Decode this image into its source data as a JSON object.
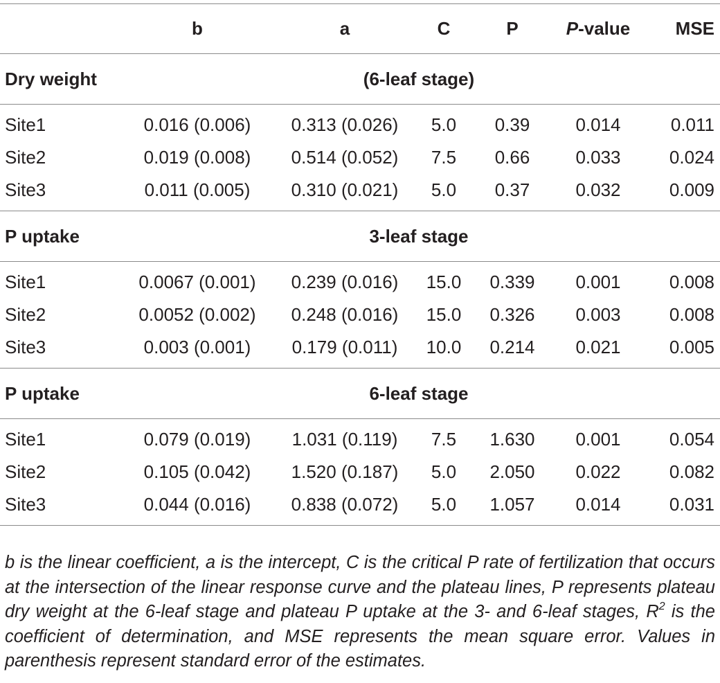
{
  "header": {
    "col0": "",
    "col1": "b",
    "col2": "a",
    "col3": "C",
    "col4": "P",
    "col5_italic": "P",
    "col5_rest": "-value",
    "col6": "MSE"
  },
  "sections": [
    {
      "label": "Dry weight",
      "stage": "(6-leaf stage)",
      "rows": [
        {
          "site": "Site1",
          "b": "0.016 (0.006)",
          "a": "0.313 (0.026)",
          "C": "5.0",
          "P": "0.39",
          "pvalue": "0.014",
          "mse": "0.011"
        },
        {
          "site": "Site2",
          "b": "0.019 (0.008)",
          "a": "0.514 (0.052)",
          "C": "7.5",
          "P": "0.66",
          "pvalue": "0.033",
          "mse": "0.024"
        },
        {
          "site": "Site3",
          "b": "0.011 (0.005)",
          "a": "0.310 (0.021)",
          "C": "5.0",
          "P": "0.37",
          "pvalue": "0.032",
          "mse": "0.009"
        }
      ]
    },
    {
      "label": "P uptake",
      "stage": "3-leaf stage",
      "rows": [
        {
          "site": "Site1",
          "b": "0.0067 (0.001)",
          "a": "0.239 (0.016)",
          "C": "15.0",
          "P": "0.339",
          "pvalue": "0.001",
          "mse": "0.008"
        },
        {
          "site": "Site2",
          "b": "0.0052 (0.002)",
          "a": "0.248 (0.016)",
          "C": "15.0",
          "P": "0.326",
          "pvalue": "0.003",
          "mse": "0.008"
        },
        {
          "site": "Site3",
          "b": "0.003 (0.001)",
          "a": "0.179 (0.011)",
          "C": "10.0",
          "P": "0.214",
          "pvalue": "0.021",
          "mse": "0.005"
        }
      ]
    },
    {
      "label": "P uptake",
      "stage": "6-leaf stage",
      "rows": [
        {
          "site": "Site1",
          "b": "0.079 (0.019)",
          "a": "1.031 (0.119)",
          "C": "7.5",
          "P": "1.630",
          "pvalue": "0.001",
          "mse": "0.054"
        },
        {
          "site": "Site2",
          "b": "0.105 (0.042)",
          "a": "1.520 (0.187)",
          "C": "5.0",
          "P": "2.050",
          "pvalue": "0.022",
          "mse": "0.082"
        },
        {
          "site": "Site3",
          "b": "0.044 (0.016)",
          "a": "0.838 (0.072)",
          "C": "5.0",
          "P": "1.057",
          "pvalue": "0.014",
          "mse": "0.031"
        }
      ]
    }
  ],
  "footnote": {
    "part1": "b is the linear coefficient, a is the intercept, C is the critical P rate of fertilization that occurs at the intersection of the linear response curve and the plateau lines, P represents plateau dry weight at the 6-leaf stage and plateau P uptake at the 3- and 6-leaf stages, R",
    "sup": "2",
    "part2": " is the coefficient of determination, and MSE represents the mean square error. Values in parenthesis represent standard error of the estimates."
  }
}
